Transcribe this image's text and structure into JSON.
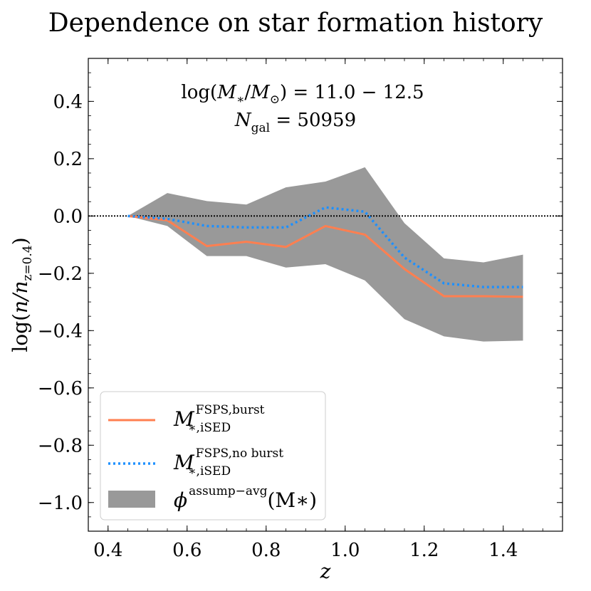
{
  "chart_data": {
    "type": "line",
    "title": "Dependence on star formation history",
    "xlabel": "z",
    "ylabel": {
      "main": "log(",
      "var": "n/n",
      "sub": "z=0.4",
      "close": ")"
    },
    "xlim": [
      0.35,
      1.55
    ],
    "ylim": [
      -1.1,
      0.55
    ],
    "xticks": [
      0.4,
      0.6,
      0.8,
      1.0,
      1.2,
      1.4
    ],
    "xtick_labels": [
      "0.4",
      "0.6",
      "0.8",
      "1.0",
      "1.2",
      "1.4"
    ],
    "yticks": [
      -1.0,
      -0.8,
      -0.6,
      -0.4,
      -0.2,
      0.0,
      0.2,
      0.4
    ],
    "ytick_labels": [
      "−1.0",
      "−0.8",
      "−0.6",
      "−0.4",
      "−0.2",
      "0.0",
      "0.2",
      "0.4"
    ],
    "reference_line_y": 0.0,
    "annotation": {
      "line1": {
        "pre": "log(",
        "var": "M",
        "sub1": "∗",
        "mid": "/",
        "var2": "M",
        "sub2": "⊙",
        "post": ") = 11.0 − 12.5"
      },
      "line2": {
        "var": "N",
        "sub": "gal",
        "post": " = 50959"
      }
    },
    "x": [
      0.45,
      0.55,
      0.65,
      0.75,
      0.85,
      0.95,
      1.05,
      1.15,
      1.25,
      1.35,
      1.45
    ],
    "series": [
      {
        "name": "M*,iSED FSPS,burst",
        "legend": {
          "var": "M",
          "sup": "FSPS,burst",
          "sub": "∗,iSED"
        },
        "style": "solid",
        "color": "#FF7F50",
        "values": [
          0.0,
          -0.015,
          -0.105,
          -0.09,
          -0.108,
          -0.035,
          -0.065,
          -0.185,
          -0.28,
          -0.28,
          -0.282
        ]
      },
      {
        "name": "M*,iSED FSPS,no burst",
        "legend": {
          "var": "M",
          "sup": "FSPS,no burst",
          "sub": "∗,iSED"
        },
        "style": "dotted",
        "color": "#1E90FF",
        "values": [
          0.0,
          -0.01,
          -0.035,
          -0.04,
          -0.04,
          0.03,
          0.015,
          -0.145,
          -0.235,
          -0.248,
          -0.248
        ]
      }
    ],
    "band": {
      "name": "phi assump-avg (M*)",
      "legend": {
        "var": "ϕ",
        "sup": "assump−avg",
        "post": "(M∗)"
      },
      "color": "#999999",
      "upper": [
        0.0,
        0.08,
        0.052,
        0.04,
        0.1,
        0.12,
        0.17,
        -0.025,
        -0.148,
        -0.162,
        -0.135
      ],
      "lower": [
        0.0,
        -0.035,
        -0.14,
        -0.14,
        -0.18,
        -0.168,
        -0.225,
        -0.36,
        -0.42,
        -0.438,
        -0.435
      ]
    },
    "legend_position": "lower-left"
  }
}
